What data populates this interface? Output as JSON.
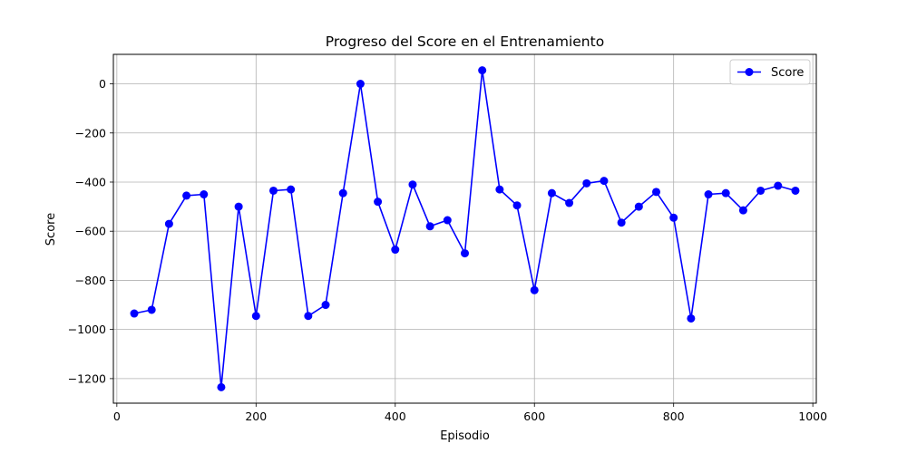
{
  "chart_data": {
    "type": "line",
    "title": "Progreso del Score en el Entrenamiento",
    "xlabel": "Episodio",
    "ylabel": "Score",
    "xlim": [
      -5,
      1005
    ],
    "ylim": [
      -1300,
      120
    ],
    "xticks": [
      0,
      200,
      400,
      600,
      800,
      1000
    ],
    "yticks": [
      -1200,
      -1000,
      -800,
      -600,
      -400,
      -200,
      0
    ],
    "grid": true,
    "legend_position": "top-right",
    "series": [
      {
        "name": "Score",
        "color": "#0000ff",
        "marker": "circle",
        "x": [
          25,
          50,
          75,
          100,
          125,
          150,
          175,
          200,
          225,
          250,
          275,
          300,
          325,
          350,
          375,
          400,
          425,
          450,
          475,
          500,
          525,
          550,
          575,
          600,
          625,
          650,
          675,
          700,
          725,
          750,
          775,
          800,
          825,
          850,
          875,
          900,
          925,
          950,
          975
        ],
        "y": [
          -935,
          -920,
          -570,
          -455,
          -450,
          -1235,
          -500,
          -945,
          -435,
          -430,
          -945,
          -900,
          -445,
          0,
          -480,
          -675,
          -410,
          -580,
          -555,
          -690,
          55,
          -430,
          -495,
          -840,
          -445,
          -485,
          -405,
          -395,
          -565,
          -500,
          -440,
          -545,
          -955,
          -450,
          -445,
          -515,
          -435,
          -415,
          -435
        ]
      }
    ]
  }
}
